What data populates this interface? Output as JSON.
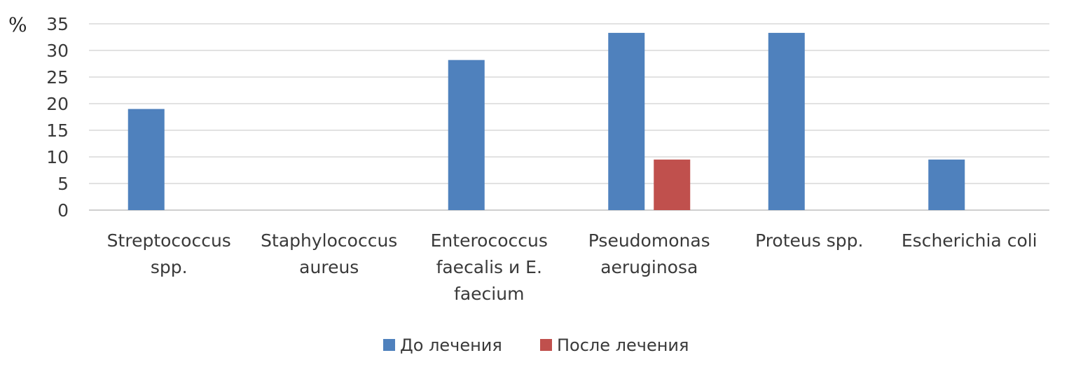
{
  "chart_data": {
    "type": "bar",
    "ylabel": "%",
    "ylim": [
      0,
      35
    ],
    "yticks": [
      0,
      5,
      10,
      15,
      20,
      25,
      30,
      35
    ],
    "grid": true,
    "legend_position": "bottom",
    "categories": [
      [
        "Streptococcus",
        "spp."
      ],
      [
        "Staphylococcus",
        "aureus"
      ],
      [
        "Enterococcus",
        "faecalis и E.",
        "faecium"
      ],
      [
        "Pseudomonas",
        "aeruginosa"
      ],
      [
        "Proteus spp."
      ],
      [
        "Escherichia coli"
      ]
    ],
    "series": [
      {
        "name": "До лечения",
        "color": "#4f81bd",
        "values": [
          19,
          0,
          28.2,
          33.3,
          33.3,
          9.5
        ]
      },
      {
        "name": "После лечения",
        "color": "#c0504d",
        "values": [
          0,
          0,
          0,
          9.5,
          0,
          0
        ]
      }
    ]
  }
}
